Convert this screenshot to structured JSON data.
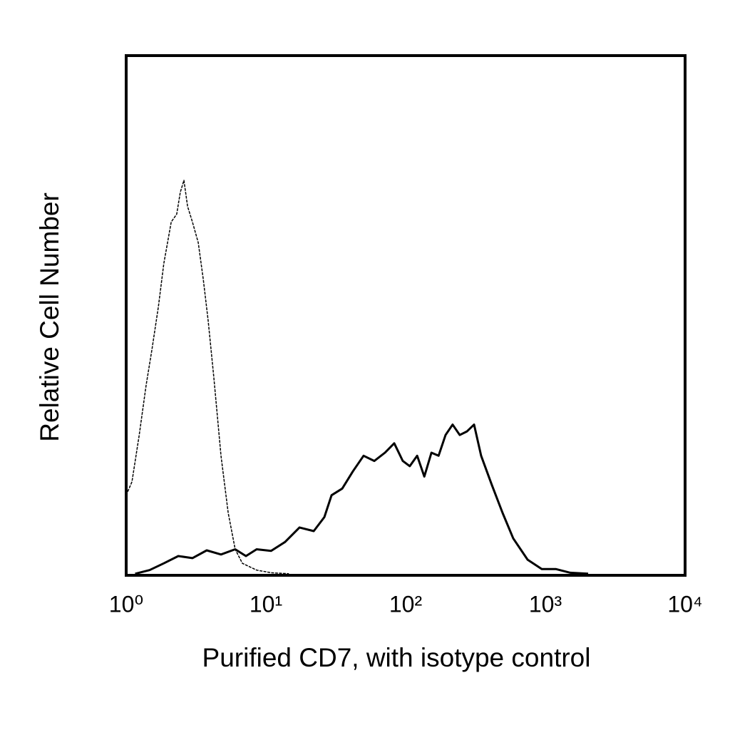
{
  "chart_data": {
    "type": "line",
    "x_label": "Purified CD7, with isotype control",
    "y_label": "Relative Cell Number",
    "xscale": "log",
    "xlim": [
      1,
      10000
    ],
    "xticks": [
      {
        "value": 1,
        "label": "10⁰"
      },
      {
        "value": 10,
        "label": "10¹"
      },
      {
        "value": 100,
        "label": "10²"
      },
      {
        "value": 1000,
        "label": "10³"
      },
      {
        "value": 10000,
        "label": "10⁴"
      }
    ],
    "ylim": [
      0,
      100
    ],
    "series": [
      {
        "color": "#000000",
        "style": "dashed",
        "x": [
          1.0,
          1.1,
          1.24,
          1.39,
          1.53,
          1.7,
          1.86,
          2.1,
          2.3,
          2.44,
          2.59,
          2.75,
          2.98,
          3.28,
          3.56,
          3.86,
          4.24,
          4.77,
          5.37,
          6.03,
          6.79,
          8.58,
          10.9,
          14.6
        ],
        "values": [
          15.4,
          18,
          27,
          36.6,
          43.5,
          51.7,
          60,
          68,
          69.5,
          73.7,
          76,
          71,
          68,
          64,
          57,
          49,
          38,
          23,
          12,
          5,
          2.3,
          1,
          0.5,
          0.3
        ]
      },
      {
        "color": "#000000",
        "style": "solid",
        "x": [
          1.16,
          1.47,
          1.86,
          2.36,
          2.98,
          3.77,
          4.77,
          6.03,
          7.2,
          8.58,
          10.9,
          13.7,
          17.4,
          22.0,
          26.2,
          29.5,
          35.2,
          41.9,
          50.0,
          59.7,
          71.1,
          82.9,
          95.4,
          107,
          121,
          136,
          153,
          172,
          193,
          217,
          244,
          275,
          309,
          347,
          414,
          494,
          589,
          746,
          943,
          1193,
          1509,
          2024
        ],
        "values": [
          0.3,
          1,
          2.3,
          3.7,
          3.3,
          4.8,
          4,
          5,
          3.7,
          5,
          4.7,
          6.4,
          9.2,
          8.5,
          11.2,
          15.4,
          16.7,
          20,
          23,
          22,
          23.6,
          25.4,
          22,
          21,
          23,
          19,
          23.6,
          23,
          27,
          29,
          27,
          27.7,
          29,
          23,
          17.4,
          12,
          7.1,
          3,
          1.2,
          1.2,
          0.5,
          0.3
        ]
      }
    ]
  }
}
